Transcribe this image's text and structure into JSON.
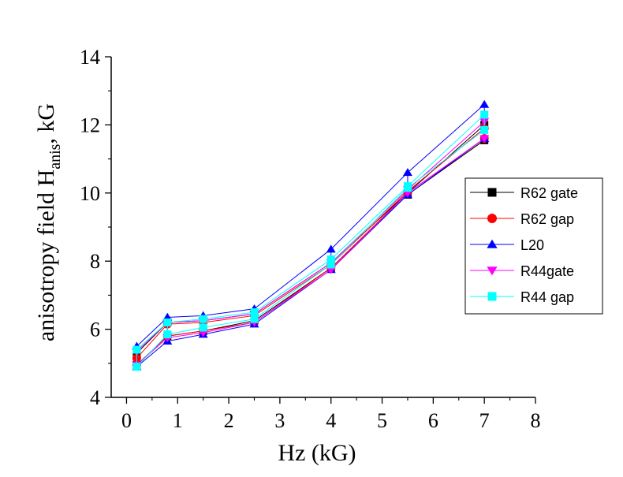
{
  "chart_data": {
    "type": "line",
    "xlabel": "Hz (kG)",
    "ylabel": {
      "main": "anisotropy field H",
      "subscript": "anis",
      "suffix": ", kG"
    },
    "xlim": [
      -0.3,
      8
    ],
    "ylim": [
      4,
      14
    ],
    "xticks": [
      "0",
      "1",
      "2",
      "3",
      "4",
      "5",
      "6",
      "7",
      "8"
    ],
    "yticks": [
      "4",
      "6",
      "8",
      "10",
      "12",
      "14"
    ],
    "grid": false,
    "legend_position": "right",
    "series": [
      {
        "name": "R62 gate",
        "color": "#000000",
        "marker": "square",
        "x": [
          0.2,
          0.8,
          1.5,
          2.5,
          4,
          5.5,
          7
        ],
        "upper": [
          5.3,
          6.2,
          6.25,
          6.45,
          7.95,
          10.0,
          12.0
        ],
        "lower": [
          4.95,
          5.8,
          5.95,
          6.25,
          7.8,
          9.95,
          11.55
        ]
      },
      {
        "name": "R62 gap",
        "color": "#ff0000",
        "marker": "circle",
        "x": [
          0.2,
          0.8,
          1.5,
          2.5,
          4,
          5.5,
          7
        ],
        "upper": [
          5.15,
          6.15,
          6.2,
          6.4,
          7.9,
          10.05,
          11.9
        ],
        "lower": [
          4.95,
          5.8,
          5.95,
          6.2,
          7.8,
          10.0,
          11.6
        ]
      },
      {
        "name": "L20",
        "color": "#0000ff",
        "marker": "triangle-up",
        "x": [
          0.2,
          0.8,
          1.5,
          2.5,
          4,
          5.5,
          7
        ],
        "upper": [
          5.5,
          6.35,
          6.4,
          6.6,
          8.35,
          10.6,
          12.6
        ],
        "lower": [
          4.9,
          5.65,
          5.85,
          6.15,
          7.75,
          9.95,
          11.6
        ]
      },
      {
        "name": "R44gate",
        "color": "#ff00ff",
        "marker": "triangle-down",
        "x": [
          0.2,
          0.8,
          1.5,
          2.5,
          4,
          5.5,
          7
        ],
        "upper": [
          5.35,
          6.2,
          6.25,
          6.45,
          7.95,
          10.1,
          12.1
        ],
        "lower": [
          4.95,
          5.75,
          5.9,
          6.2,
          7.75,
          10.0,
          11.6
        ]
      },
      {
        "name": "R44 gap",
        "color": "#00ffff",
        "marker": "square",
        "x": [
          0.2,
          0.8,
          1.5,
          2.5,
          4,
          5.5,
          7
        ],
        "upper": [
          5.4,
          6.2,
          6.3,
          6.5,
          8.05,
          10.2,
          12.3
        ],
        "lower": [
          4.9,
          5.85,
          6.05,
          6.3,
          7.9,
          10.15,
          11.85
        ]
      }
    ]
  }
}
